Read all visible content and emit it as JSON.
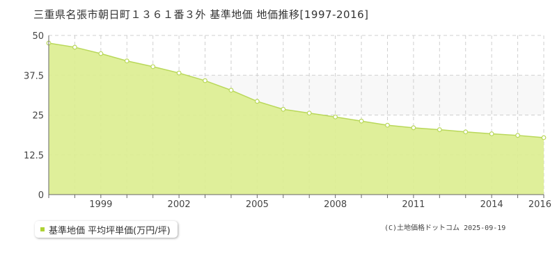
{
  "title": "三重県名張市朝日町１３６１番３外 基準地価 地価推移[1997-2016]",
  "copyright": "(C)土地価格ドットコム 2025-09-19",
  "colors": {
    "area_fill": "#dced8f",
    "line": "#b9d85a",
    "band": "#f8f8f8",
    "grid": "#cfcfcf",
    "legend_swatch": "#aed234"
  },
  "chart_data": {
    "type": "area",
    "title": "三重県名張市朝日町１３６１番３外 基準地価 地価推移[1997-2016]",
    "xlabel": "",
    "ylabel": "",
    "x": [
      1997,
      1998,
      1999,
      2000,
      2001,
      2002,
      2003,
      2004,
      2005,
      2006,
      2007,
      2008,
      2009,
      2010,
      2011,
      2012,
      2013,
      2014,
      2015,
      2016
    ],
    "series": [
      {
        "name": "基準地価 平均坪単価(万円/坪)",
        "values": [
          47.6,
          46.3,
          44.3,
          42.0,
          40.2,
          38.2,
          35.8,
          32.8,
          29.3,
          26.8,
          25.6,
          24.4,
          23.1,
          21.8,
          21.0,
          20.4,
          19.7,
          19.1,
          18.6,
          17.9
        ]
      }
    ],
    "ylim": [
      0,
      50
    ],
    "xlim": [
      1997,
      2016
    ],
    "y_ticks": [
      "0",
      "12.5",
      "25",
      "37.5",
      "50"
    ],
    "y_tick_values": [
      0,
      12.5,
      25,
      37.5,
      50
    ],
    "x_ticks": [
      "1999",
      "2002",
      "2005",
      "2008",
      "2011",
      "2014",
      "2016"
    ],
    "x_tick_values": [
      1999,
      2002,
      2005,
      2008,
      2011,
      2014,
      2016
    ],
    "grid": true,
    "legend": "bottom-left"
  }
}
